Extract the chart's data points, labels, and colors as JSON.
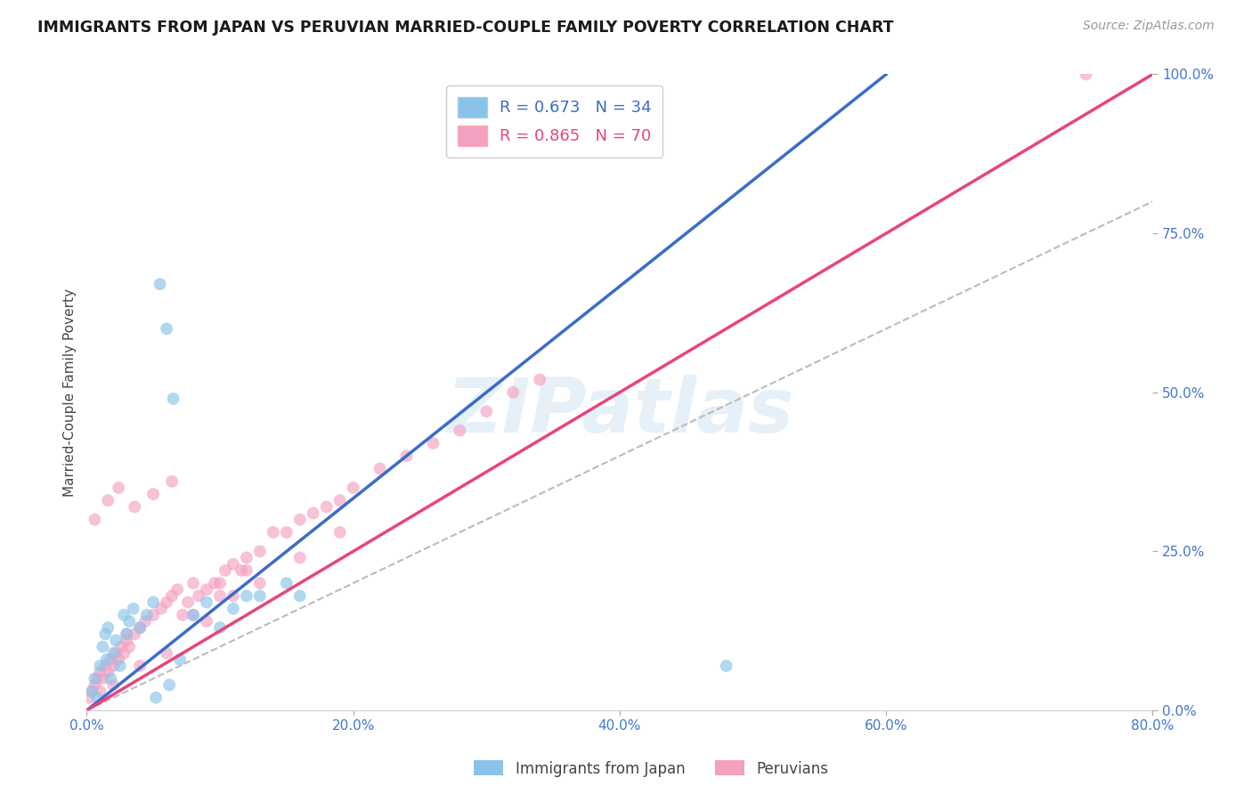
{
  "title": "IMMIGRANTS FROM JAPAN VS PERUVIAN MARRIED-COUPLE FAMILY POVERTY CORRELATION CHART",
  "source": "Source: ZipAtlas.com",
  "xlabel_ticks": [
    "0.0%",
    "20.0%",
    "40.0%",
    "60.0%",
    "80.0%"
  ],
  "ylabel_ticks_right": [
    "100.0%",
    "75.0%",
    "50.0%",
    "25.0%",
    "0.0%"
  ],
  "ylabel_label": "Married-Couple Family Poverty",
  "legend_bottom": [
    "Immigrants from Japan",
    "Peruvians"
  ],
  "japan_R": 0.673,
  "japan_N": 34,
  "peru_R": 0.865,
  "peru_N": 70,
  "japan_color": "#89C4E8",
  "peru_color": "#F4A0C0",
  "japan_line_color": "#3B6CC7",
  "peru_line_color": "#E8457A",
  "background_color": "#FFFFFF",
  "watermark": "ZIPatlas",
  "japan_scatter_x": [
    0.4,
    0.6,
    0.8,
    1.0,
    1.2,
    1.4,
    1.5,
    1.6,
    1.8,
    2.0,
    2.2,
    2.5,
    2.8,
    3.0,
    3.2,
    3.5,
    4.0,
    4.5,
    5.0,
    5.5,
    6.0,
    6.5,
    7.0,
    8.0,
    9.0,
    10.0,
    11.0,
    12.0,
    13.0,
    15.0,
    16.0,
    5.2,
    6.2,
    48.0
  ],
  "japan_scatter_y": [
    3.0,
    5.0,
    2.0,
    7.0,
    10.0,
    12.0,
    8.0,
    13.0,
    5.0,
    9.0,
    11.0,
    7.0,
    15.0,
    12.0,
    14.0,
    16.0,
    13.0,
    15.0,
    17.0,
    67.0,
    60.0,
    49.0,
    8.0,
    15.0,
    17.0,
    13.0,
    16.0,
    18.0,
    18.0,
    20.0,
    18.0,
    2.0,
    4.0,
    7.0
  ],
  "peru_scatter_x": [
    0.2,
    0.4,
    0.6,
    0.8,
    1.0,
    1.2,
    1.4,
    1.6,
    1.8,
    2.0,
    2.2,
    2.4,
    2.6,
    2.8,
    3.0,
    3.2,
    3.6,
    4.0,
    4.4,
    5.0,
    5.6,
    6.0,
    6.4,
    6.8,
    7.2,
    7.6,
    8.0,
    8.4,
    9.0,
    9.6,
    10.0,
    10.4,
    11.0,
    11.6,
    12.0,
    13.0,
    14.0,
    15.0,
    16.0,
    17.0,
    18.0,
    19.0,
    20.0,
    22.0,
    24.0,
    26.0,
    28.0,
    30.0,
    32.0,
    34.0,
    0.6,
    1.6,
    2.4,
    3.6,
    5.0,
    6.4,
    8.0,
    10.0,
    12.0,
    1.0,
    2.0,
    4.0,
    6.0,
    3.0,
    9.0,
    11.0,
    13.0,
    16.0,
    19.0,
    75.0
  ],
  "peru_scatter_y": [
    2.0,
    3.0,
    4.0,
    5.0,
    6.0,
    5.0,
    7.0,
    6.0,
    8.0,
    7.0,
    9.0,
    8.0,
    10.0,
    9.0,
    11.0,
    10.0,
    12.0,
    13.0,
    14.0,
    15.0,
    16.0,
    17.0,
    18.0,
    19.0,
    15.0,
    17.0,
    20.0,
    18.0,
    19.0,
    20.0,
    20.0,
    22.0,
    23.0,
    22.0,
    24.0,
    25.0,
    28.0,
    28.0,
    30.0,
    31.0,
    32.0,
    33.0,
    35.0,
    38.0,
    40.0,
    42.0,
    44.0,
    47.0,
    50.0,
    52.0,
    30.0,
    33.0,
    35.0,
    32.0,
    34.0,
    36.0,
    15.0,
    18.0,
    22.0,
    3.0,
    4.0,
    7.0,
    9.0,
    12.0,
    14.0,
    18.0,
    20.0,
    24.0,
    28.0,
    100.0
  ],
  "xlim": [
    0.0,
    80.0
  ],
  "ylim": [
    0.0,
    100.0
  ],
  "japan_line_x0": 0.0,
  "japan_line_y0": 0.0,
  "japan_line_x1": 60.0,
  "japan_line_y1": 100.0,
  "peru_line_x0": 0.0,
  "peru_line_y0": 0.0,
  "peru_line_x1": 80.0,
  "peru_line_y1": 100.0,
  "dashed_line_x": [
    0.0,
    80.0
  ],
  "dashed_line_y": [
    0.0,
    80.0
  ],
  "xtick_vals": [
    0.0,
    20.0,
    40.0,
    60.0,
    80.0
  ],
  "ytick_vals": [
    0.0,
    25.0,
    50.0,
    75.0,
    100.0
  ]
}
